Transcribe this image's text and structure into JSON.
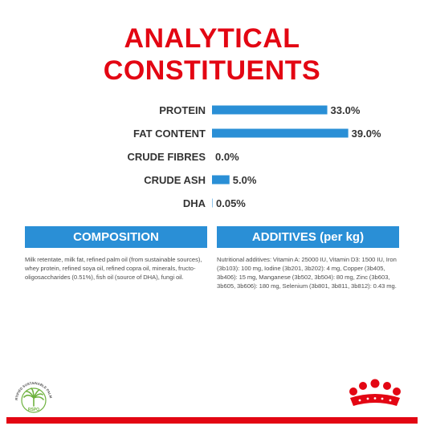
{
  "title": {
    "line1": "ANALYTICAL",
    "line2": "CONSTITUENTS"
  },
  "chart_data": {
    "type": "bar",
    "orientation": "horizontal",
    "categories": [
      "PROTEIN",
      "FAT CONTENT",
      "CRUDE FIBRES",
      "CRUDE ASH",
      "DHA"
    ],
    "values": [
      33.0,
      39.0,
      0.0,
      5.0,
      0.05
    ],
    "value_labels": [
      "33.0%",
      "39.0%",
      "0.0%",
      "5.0%",
      "0.05%"
    ],
    "unit": "%",
    "title": "",
    "xlabel": "",
    "ylabel": "",
    "xlim": [
      0,
      45
    ],
    "grid": false,
    "legend": "none",
    "bar_color": "#2a8fd6"
  },
  "composition": {
    "header": "COMPOSITION",
    "text": "Milk retentate, milk fat, refined palm oil (from sustainable sources), whey protein, refined soya oil, refined copra oil, minerals, fructo-oligosaccharides (0.51%), fish oil (source of DHA), fungi oil."
  },
  "additives": {
    "header": "ADDITIVES (per kg)",
    "text": "Nutritional additives: Vitamin A: 25000 IU, Vitamin D3: 1500 IU, Iron (3b103): 100 mg, Iodine (3b201, 3b202): 4 mg, Copper (3b405, 3b406): 15 mg, Manganese (3b502, 3b504): 80 mg, Zinc (3b603, 3b605, 3b606): 180 mg, Selenium (3b801, 3b811, 3b812): 0.43 mg."
  },
  "logos": {
    "rspo_text": "CERTIFIED SUSTAINABLE PALM OIL",
    "rspo_label": "RSPO",
    "brand_icon": "royal-canin-crown-icon",
    "certification_icon": "rspo-palm-icon"
  },
  "colors": {
    "title_red": "#e30613",
    "accent_blue": "#2a8fd6",
    "footer_red": "#e30613",
    "rspo_green": "#6fb23f"
  }
}
